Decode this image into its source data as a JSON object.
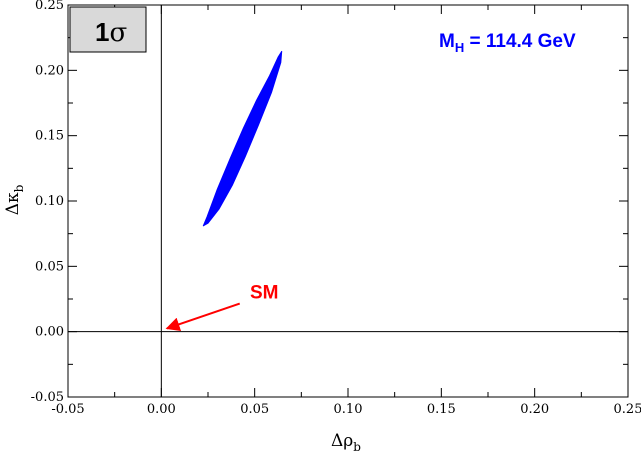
{
  "chart_data": {
    "type": "contour",
    "xlabel": {
      "base": "Δρ",
      "sub": "b"
    },
    "ylabel": {
      "base": "Δκ",
      "sub": "b"
    },
    "xlim": [
      -0.05,
      0.25
    ],
    "ylim": [
      -0.05,
      0.25
    ],
    "x_ticks": [
      {
        "value": -0.05,
        "label": "-0.05"
      },
      {
        "value": 0.0,
        "label": "0.00"
      },
      {
        "value": 0.05,
        "label": "0.05"
      },
      {
        "value": 0.1,
        "label": "0.10"
      },
      {
        "value": 0.15,
        "label": "0.15"
      },
      {
        "value": 0.2,
        "label": "0.20"
      },
      {
        "value": 0.25,
        "label": "0.25"
      }
    ],
    "y_ticks": [
      {
        "value": -0.05,
        "label": "-0.05"
      },
      {
        "value": 0.0,
        "label": "0.00"
      },
      {
        "value": 0.05,
        "label": "0.05"
      },
      {
        "value": 0.1,
        "label": "0.10"
      },
      {
        "value": 0.15,
        "label": "0.15"
      },
      {
        "value": 0.2,
        "label": "0.20"
      },
      {
        "value": 0.25,
        "label": "0.25"
      }
    ],
    "reference_lines": {
      "x": 0,
      "y": 0
    },
    "contour": {
      "level": "1σ",
      "color": "#0000ff",
      "points": [
        [
          0.0225,
          0.081
        ],
        [
          0.0245,
          0.088
        ],
        [
          0.03,
          0.109
        ],
        [
          0.037,
          0.133
        ],
        [
          0.044,
          0.156
        ],
        [
          0.051,
          0.177
        ],
        [
          0.058,
          0.196
        ],
        [
          0.0625,
          0.21
        ],
        [
          0.0645,
          0.2145
        ],
        [
          0.064,
          0.206
        ],
        [
          0.059,
          0.183
        ],
        [
          0.052,
          0.158
        ],
        [
          0.045,
          0.134
        ],
        [
          0.038,
          0.112
        ],
        [
          0.031,
          0.094
        ],
        [
          0.025,
          0.083
        ]
      ]
    },
    "sigma_box": {
      "label_main": "1",
      "label_sigma": "σ"
    },
    "mass_label": {
      "prefix": "M",
      "sub": "H",
      "text": " = 114.4 GeV",
      "color": "#0000ff"
    },
    "annotation": {
      "text": "SM",
      "color": "#ff0000",
      "text_at": [
        0.0475,
        0.0255
      ],
      "arrow_from": [
        0.042,
        0.0215
      ],
      "arrow_to": [
        0.003,
        0.0025
      ]
    }
  }
}
